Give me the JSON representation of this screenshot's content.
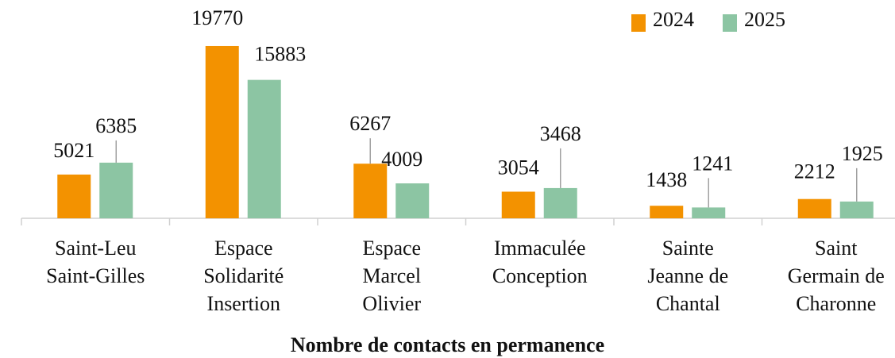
{
  "chart_data": {
    "type": "bar",
    "title": "Nombre de contacts en permanence",
    "categories": [
      "Saint-Leu\nSaint-Gilles",
      "Espace\nSolidarité\nInsertion",
      "Espace\nMarcel\nOlivier",
      "Immaculée\nConception",
      "Sainte\nJeanne de\nChantal",
      "Saint\nGermain de\nCharonne"
    ],
    "series": [
      {
        "name": "2024",
        "color": "#f39200",
        "values": [
          5021,
          19770,
          6267,
          3054,
          1438,
          2212
        ]
      },
      {
        "name": "2025",
        "color": "#8cc5a3",
        "values": [
          6385,
          15883,
          4009,
          3468,
          1241,
          1925
        ]
      }
    ],
    "ylim": [
      0,
      22000
    ],
    "legend": "top-right"
  }
}
